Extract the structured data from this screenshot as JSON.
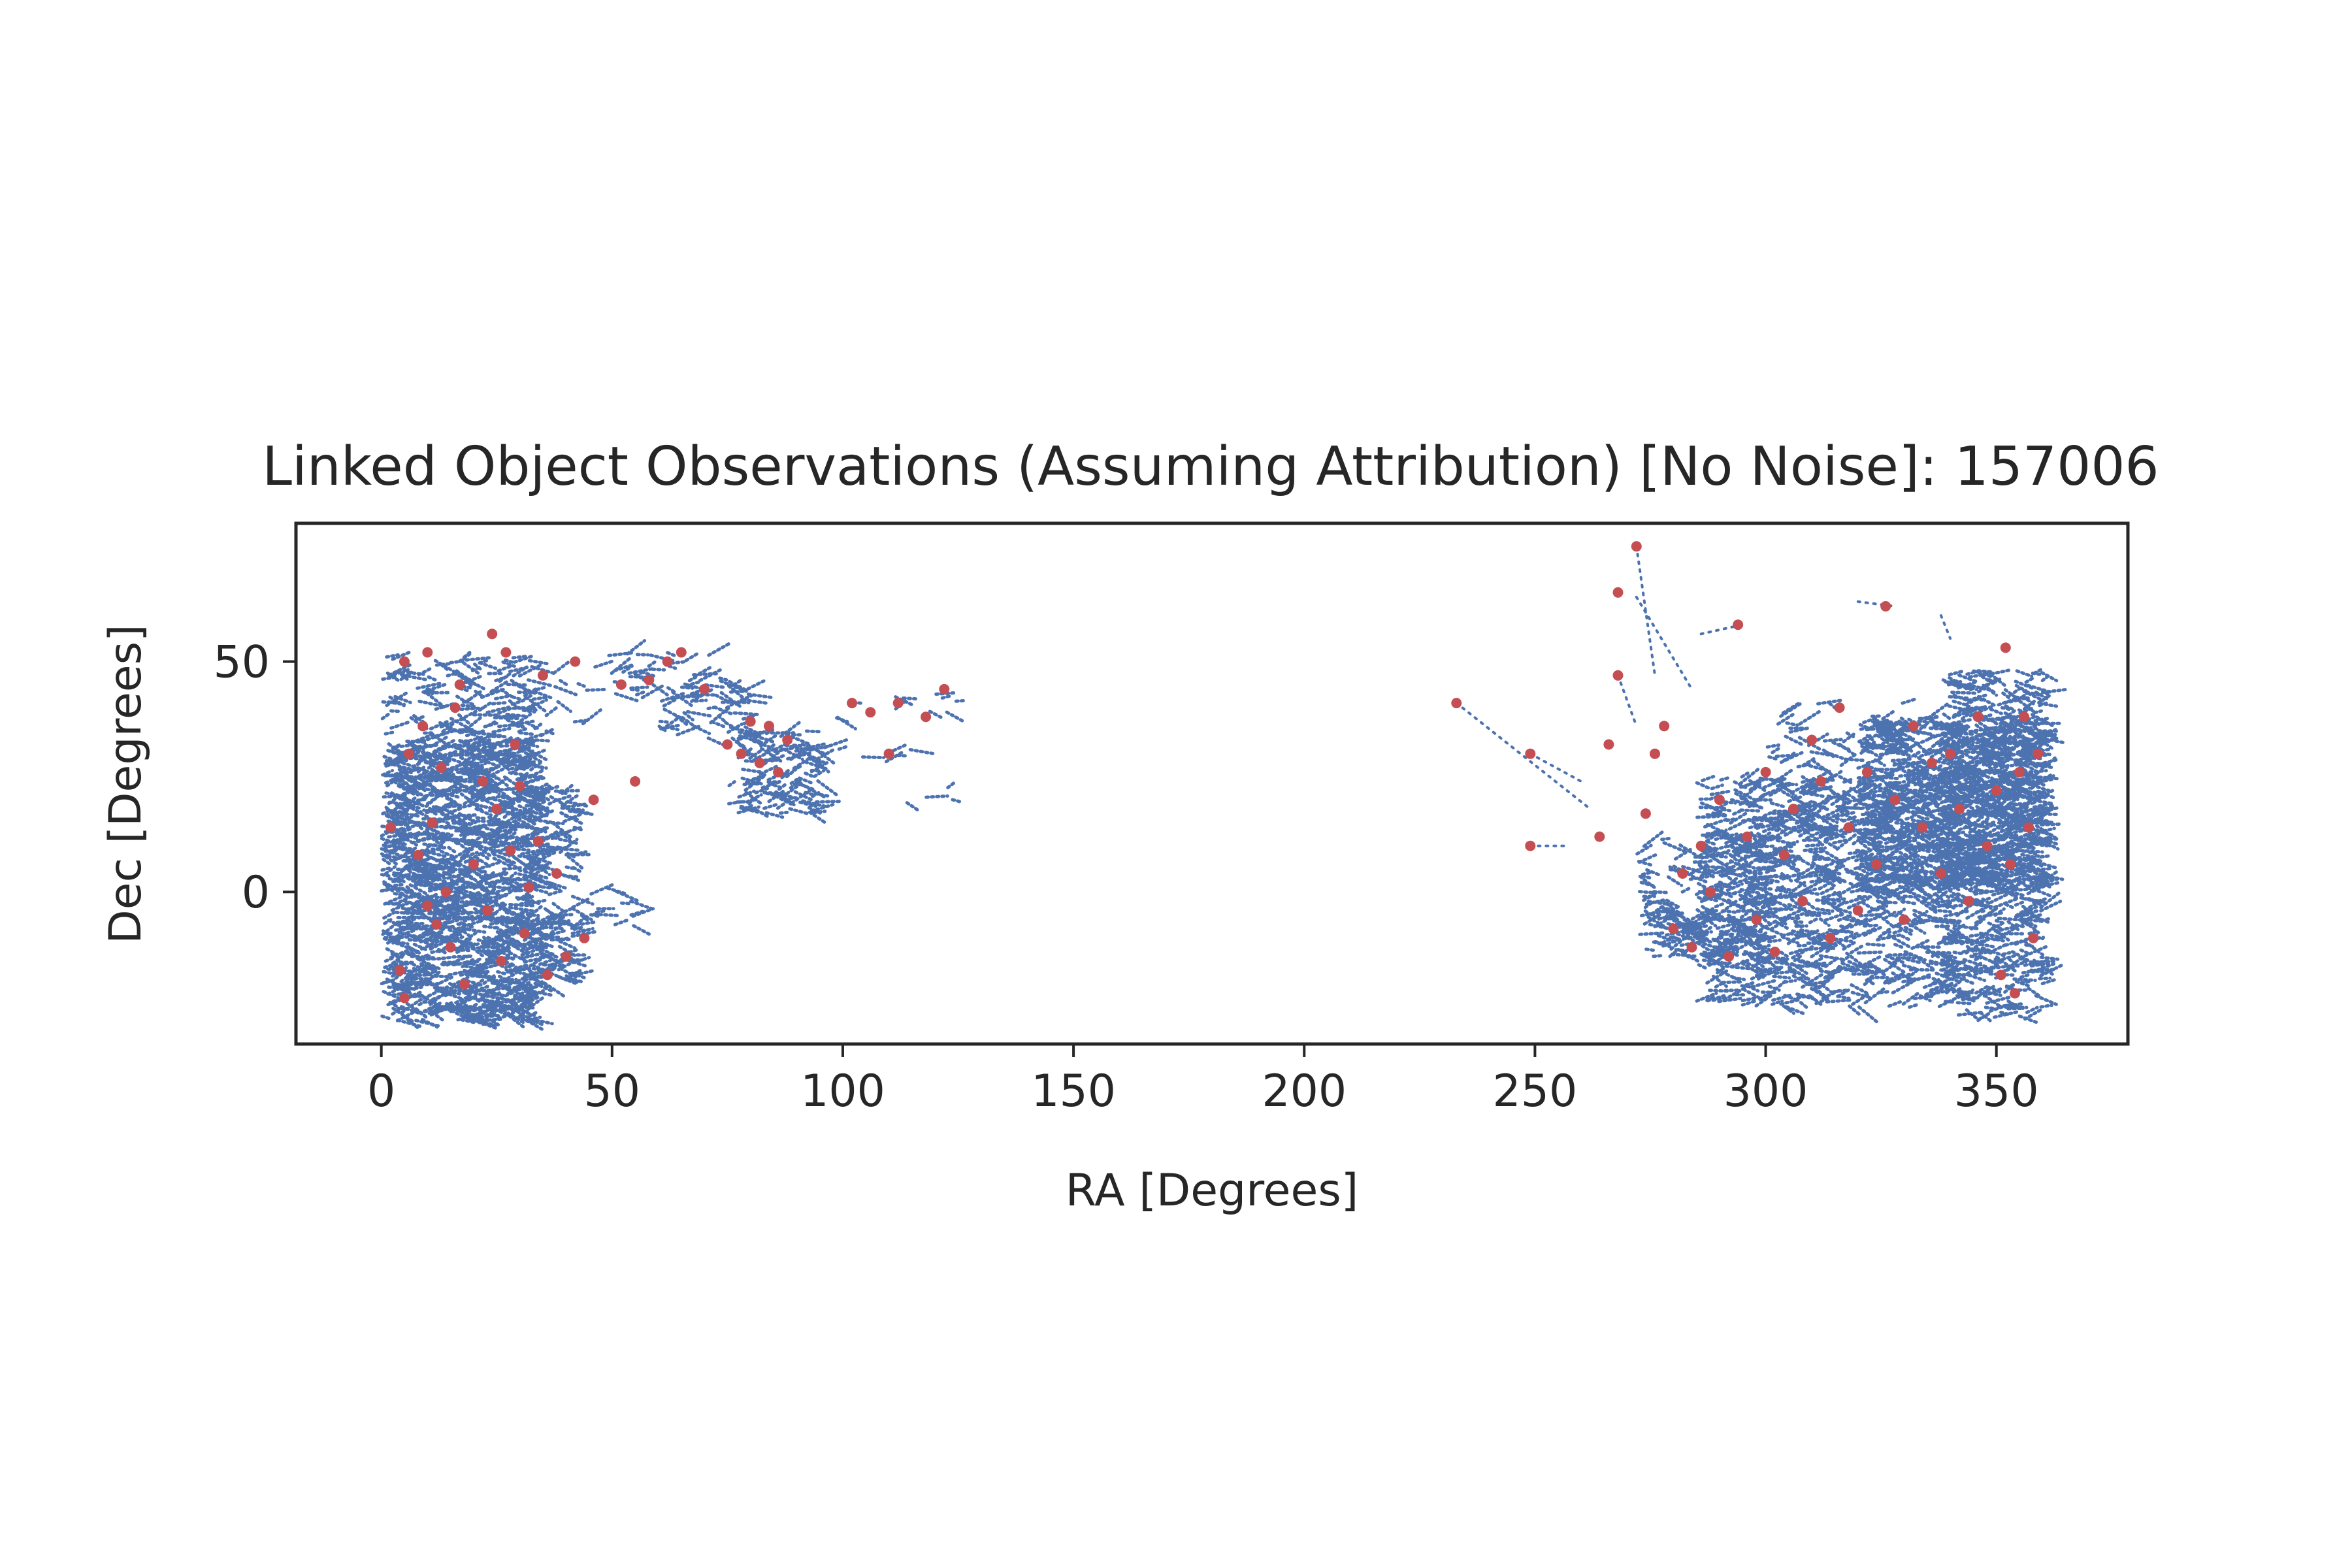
{
  "chart_data": {
    "type": "scatter",
    "title": "Linked Object Observations (Assuming Attribution) [No Noise]: 157006",
    "xlabel": "RA [Degrees]",
    "ylabel": "Dec [Degrees]",
    "xlim": [
      -18.5,
      378.5
    ],
    "ylim": [
      -33,
      80
    ],
    "xticks": [
      0,
      50,
      100,
      150,
      200,
      250,
      300,
      350
    ],
    "yticks": [
      0,
      50
    ],
    "grid": false,
    "colors": {
      "observations": "#4c72b0",
      "linked": "#c44e52",
      "axes": "#262626"
    },
    "regions": [
      {
        "ra": [
          0,
          33
        ],
        "dec": [
          -28,
          33
        ],
        "density": 0.06
      },
      {
        "ra": [
          0,
          33
        ],
        "dec": [
          33,
          51
        ],
        "density": 0.018
      },
      {
        "ra": [
          33,
          42
        ],
        "dec": [
          -20,
          22
        ],
        "density": 0.03
      },
      {
        "ra": [
          42,
          55
        ],
        "dec": [
          -8,
          1
        ],
        "density": 0.012
      },
      {
        "ra": [
          15,
          45
        ],
        "dec": [
          33,
          48
        ],
        "density": 0.01
      },
      {
        "ra": [
          45,
          75
        ],
        "dec": [
          42,
          52
        ],
        "density": 0.012
      },
      {
        "ra": [
          60,
          80
        ],
        "dec": [
          33,
          46
        ],
        "density": 0.02
      },
      {
        "ra": [
          75,
          95
        ],
        "dec": [
          17,
          35
        ],
        "density": 0.03
      },
      {
        "ra": [
          90,
          115
        ],
        "dec": [
          28,
          32
        ],
        "density": 0.012
      },
      {
        "ra": [
          98,
          125
        ],
        "dec": [
          37,
          44
        ],
        "density": 0.006
      },
      {
        "ra": [
          110,
          125
        ],
        "dec": [
          19,
          24
        ],
        "density": 0.005
      },
      {
        "ra": [
          272,
          300
        ],
        "dec": [
          -15,
          12
        ],
        "density": 0.025
      },
      {
        "ra": [
          285,
          340
        ],
        "dec": [
          -25,
          25
        ],
        "density": 0.03
      },
      {
        "ra": [
          320,
          360
        ],
        "dec": [
          0,
          38
        ],
        "density": 0.05
      },
      {
        "ra": [
          338,
          360
        ],
        "dec": [
          -28,
          48
        ],
        "density": 0.03
      },
      {
        "ra": [
          300,
          330
        ],
        "dec": [
          10,
          42
        ],
        "density": 0.01
      }
    ],
    "tracks": [
      {
        "from": [
          233,
          41
        ],
        "to": [
          262,
          18
        ]
      },
      {
        "from": [
          249,
          30
        ],
        "to": [
          260,
          24
        ]
      },
      {
        "from": [
          249,
          10
        ],
        "to": [
          257,
          10
        ]
      },
      {
        "from": [
          272,
          75
        ],
        "to": [
          276,
          47
        ]
      },
      {
        "from": [
          272,
          64
        ],
        "to": [
          284,
          44
        ]
      },
      {
        "from": [
          268,
          47
        ],
        "to": [
          272,
          36
        ]
      },
      {
        "from": [
          286,
          56
        ],
        "to": [
          295,
          58
        ]
      },
      {
        "from": [
          320,
          63
        ],
        "to": [
          328,
          62
        ]
      },
      {
        "from": [
          338,
          60
        ],
        "to": [
          340,
          55
        ]
      }
    ],
    "linked_points": [
      [
        2,
        14
      ],
      [
        4,
        -17
      ],
      [
        5,
        -23
      ],
      [
        6,
        30
      ],
      [
        8,
        8
      ],
      [
        9,
        36
      ],
      [
        10,
        -3
      ],
      [
        11,
        15
      ],
      [
        12,
        -7
      ],
      [
        13,
        27
      ],
      [
        14,
        0
      ],
      [
        15,
        -12
      ],
      [
        16,
        40
      ],
      [
        17,
        45
      ],
      [
        18,
        -20
      ],
      [
        20,
        6
      ],
      [
        22,
        24
      ],
      [
        23,
        -4
      ],
      [
        24,
        56
      ],
      [
        25,
        18
      ],
      [
        26,
        -15
      ],
      [
        27,
        52
      ],
      [
        28,
        9
      ],
      [
        29,
        32
      ],
      [
        30,
        23
      ],
      [
        31,
        -9
      ],
      [
        32,
        1
      ],
      [
        34,
        11
      ],
      [
        35,
        47
      ],
      [
        36,
        -18
      ],
      [
        38,
        4
      ],
      [
        40,
        -14
      ],
      [
        42,
        50
      ],
      [
        44,
        -10
      ],
      [
        46,
        20
      ],
      [
        52,
        45
      ],
      [
        55,
        24
      ],
      [
        58,
        46
      ],
      [
        62,
        50
      ],
      [
        65,
        52
      ],
      [
        70,
        44
      ],
      [
        75,
        32
      ],
      [
        78,
        30
      ],
      [
        80,
        37
      ],
      [
        82,
        28
      ],
      [
        84,
        36
      ],
      [
        86,
        26
      ],
      [
        88,
        33
      ],
      [
        102,
        41
      ],
      [
        106,
        39
      ],
      [
        110,
        30
      ],
      [
        112,
        41
      ],
      [
        118,
        38
      ],
      [
        122,
        44
      ],
      [
        5,
        50
      ],
      [
        10,
        52
      ],
      [
        233,
        41
      ],
      [
        249,
        30
      ],
      [
        249,
        10
      ],
      [
        264,
        12
      ],
      [
        266,
        32
      ],
      [
        268,
        47
      ],
      [
        268,
        65
      ],
      [
        272,
        75
      ],
      [
        274,
        17
      ],
      [
        276,
        30
      ],
      [
        278,
        36
      ],
      [
        280,
        -8
      ],
      [
        282,
        4
      ],
      [
        284,
        -12
      ],
      [
        286,
        10
      ],
      [
        288,
        0
      ],
      [
        290,
        20
      ],
      [
        292,
        -14
      ],
      [
        294,
        58
      ],
      [
        296,
        12
      ],
      [
        298,
        -6
      ],
      [
        300,
        26
      ],
      [
        302,
        -13
      ],
      [
        304,
        8
      ],
      [
        306,
        18
      ],
      [
        308,
        -2
      ],
      [
        310,
        33
      ],
      [
        312,
        24
      ],
      [
        314,
        -10
      ],
      [
        316,
        40
      ],
      [
        318,
        14
      ],
      [
        320,
        -4
      ],
      [
        322,
        26
      ],
      [
        324,
        6
      ],
      [
        326,
        62
      ],
      [
        328,
        20
      ],
      [
        330,
        -6
      ],
      [
        332,
        36
      ],
      [
        334,
        14
      ],
      [
        336,
        28
      ],
      [
        338,
        4
      ],
      [
        340,
        30
      ],
      [
        342,
        18
      ],
      [
        344,
        -2
      ],
      [
        346,
        38
      ],
      [
        348,
        10
      ],
      [
        350,
        22
      ],
      [
        351,
        -18
      ],
      [
        352,
        53
      ],
      [
        353,
        6
      ],
      [
        354,
        -22
      ],
      [
        355,
        26
      ],
      [
        356,
        38
      ],
      [
        357,
        14
      ],
      [
        358,
        -10
      ],
      [
        359,
        30
      ]
    ]
  }
}
